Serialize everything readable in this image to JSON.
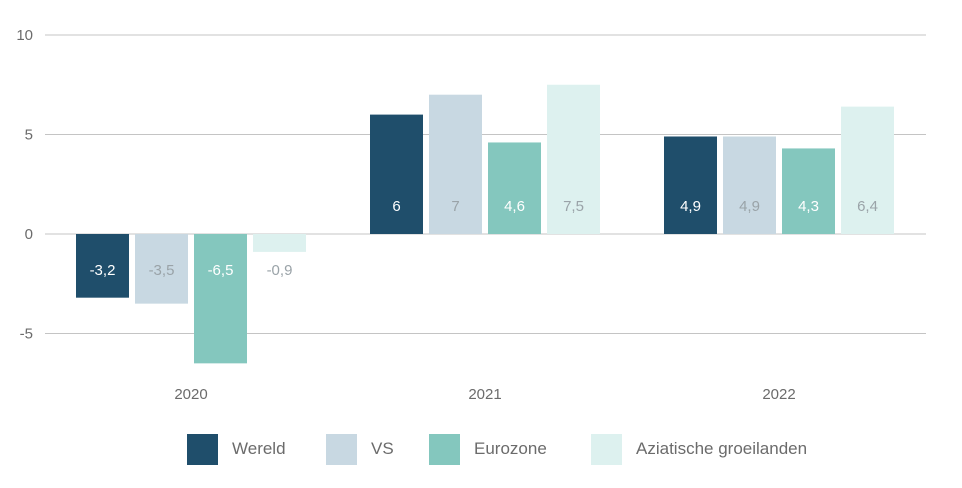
{
  "chart_data": {
    "type": "bar",
    "categories": [
      "2020",
      "2021",
      "2022"
    ],
    "series": [
      {
        "name": "Wereld",
        "values": [
          -3.2,
          6,
          4.9
        ],
        "labels": [
          "-3,2",
          "6",
          "4,9"
        ],
        "color": "#1f4e6b",
        "label_color": "#ffffff"
      },
      {
        "name": "VS",
        "values": [
          -3.5,
          7,
          4.9
        ],
        "labels": [
          "-3,5",
          "7",
          "4,9"
        ],
        "color": "#c8d8e2",
        "label_color": "#9aa3a8"
      },
      {
        "name": "Eurozone",
        "values": [
          -6.5,
          4.6,
          4.3
        ],
        "labels": [
          "-6,5",
          "4,6",
          "4,3"
        ],
        "color": "#84c7be",
        "label_color": "#ffffff"
      },
      {
        "name": "Aziatische groeilanden",
        "values": [
          -0.9,
          7.5,
          6.4
        ],
        "labels": [
          "-0,9",
          "7,5",
          "6,4"
        ],
        "color": "#ddf1ef",
        "label_color": "#9aa3a8"
      }
    ],
    "yticks": [
      10,
      5,
      0,
      -5
    ],
    "ytick_labels": [
      "10",
      "5",
      "0",
      "-5"
    ],
    "ylim": [
      -7,
      10
    ],
    "grid": true,
    "legend": "bottom",
    "title": "",
    "xlabel": "",
    "ylabel": ""
  }
}
